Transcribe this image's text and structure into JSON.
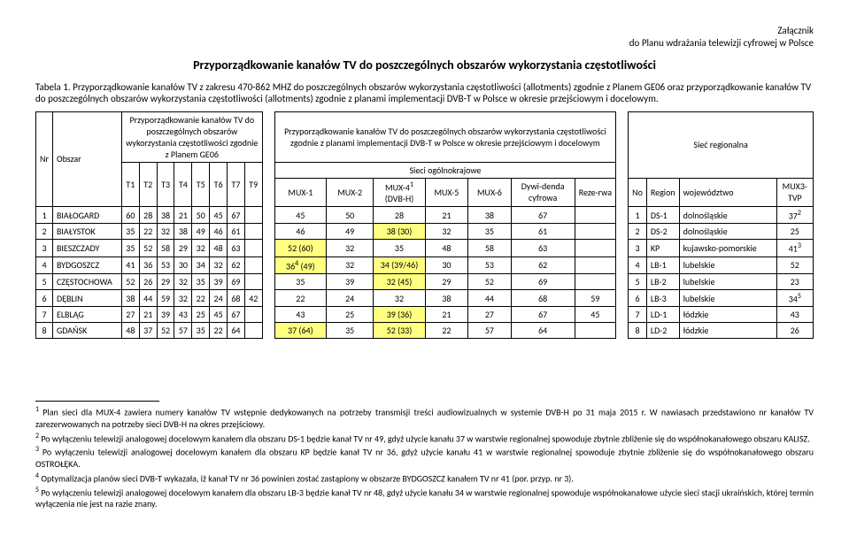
{
  "header": {
    "line1": "Załącznik",
    "line2": "do Planu wdrażania telewizji cyfrowej w Polsce"
  },
  "title": "Przyporządkowanie kanałów TV do poszczególnych obszarów wykorzystania częstotliwości",
  "tabela_label": "Tabela 1.",
  "desc": "Przyporządkowanie kanałów TV z zakresu 470-862 MHZ do poszczególnych obszarów wykorzystania częstotliwości (allotments) zgodnie z Planem GE06 oraz przyporządkowanie kanałów TV do poszczególnych obszarów wykorzystania częstotliwości (allotments) zgodnie z planami implementacji DVB-T w Polsce w okresie przejściowym i docelowym.",
  "group_left": "Przyporządkowanie kanałów TV do poszczególnych obszarów wykorzystania częstotliwości zgodnie z Planem GE06",
  "group_mid": "Przyporządkowanie kanałów TV do poszczególnych obszarów wykorzystania częstotliwości zgodnie z planami implementacji DVB-T w Polsce w okresie przejściowym i docelowym",
  "group_mid_sub1": "Sieci ogólnokrajowe",
  "group_mid_sub2": "Sieć regionalna",
  "cols": {
    "nr": "Nr",
    "obszar": "Obszar",
    "t1": "T1",
    "t2": "T2",
    "t3": "T3",
    "t4": "T4",
    "t5": "T5",
    "t6": "T6",
    "t7": "T7",
    "t9": "T9",
    "mux1": "MUX-1",
    "mux2": "MUX-2",
    "mux4": "MUX-4",
    "mux4_sup": "1",
    "mux4_sub": "(DVB-H)",
    "mux5": "MUX-5",
    "mux6": "MUX-6",
    "dyw": "Dywi-denda cyfrowa",
    "rez": "Reze-rwa",
    "no": "No",
    "region": "Region",
    "woj": "województwo",
    "mux3": "MUX3-TVP"
  },
  "rows": [
    {
      "nr": "1",
      "obszar": "BIAŁOGARD",
      "t": [
        "60",
        "28",
        "38",
        "21",
        "50",
        "45",
        "67",
        ""
      ],
      "m1": "45",
      "m2": "50",
      "m4": "28",
      "m5": "21",
      "m6": "38",
      "dyw": "67",
      "rez": "",
      "no": "1",
      "reg": "DS-1",
      "woj": "dolnośląskie",
      "m3": "37",
      "m3s": "2"
    },
    {
      "nr": "2",
      "obszar": "BIAŁYSTOK",
      "t": [
        "35",
        "22",
        "32",
        "38",
        "49",
        "46",
        "61",
        ""
      ],
      "m1": "46",
      "m2": "49",
      "m4": "38 (30)",
      "m4h": true,
      "m5": "32",
      "m6": "35",
      "dyw": "61",
      "rez": "",
      "no": "2",
      "reg": "DS-2",
      "woj": "dolnośląskie",
      "m3": "25"
    },
    {
      "nr": "3",
      "obszar": "BIESZCZADY",
      "t": [
        "35",
        "52",
        "58",
        "29",
        "32",
        "48",
        "63",
        ""
      ],
      "m1": "52 (60)",
      "m1h": true,
      "m2": "32",
      "m4": "35",
      "m5": "48",
      "m6": "58",
      "dyw": "63",
      "rez": "",
      "no": "3",
      "reg": "KP",
      "woj": "kujawsko-pomorskie",
      "m3": "41",
      "m3s": "3"
    },
    {
      "nr": "4",
      "obszar": "BYDGOSZCZ",
      "t": [
        "41",
        "36",
        "53",
        "30",
        "34",
        "32",
        "62",
        ""
      ],
      "m1": "36",
      "m1s": "4",
      "m1p": " (49)",
      "m1h": true,
      "m2": "32",
      "m4": "34 (39/46)",
      "m4h": true,
      "m5": "30",
      "m6": "53",
      "dyw": "62",
      "rez": "",
      "no": "4",
      "reg": "LB-1",
      "woj": "lubelskie",
      "m3": "52"
    },
    {
      "nr": "5",
      "obszar": "CZĘSTOCHOWA",
      "t": [
        "52",
        "26",
        "29",
        "32",
        "35",
        "39",
        "69",
        ""
      ],
      "m1": "35",
      "m2": "39",
      "m4": "32 (45)",
      "m4h": true,
      "m5": "29",
      "m6": "52",
      "dyw": "69",
      "rez": "",
      "no": "5",
      "reg": "LB-2",
      "woj": "lubelskie",
      "m3": "23"
    },
    {
      "nr": "6",
      "obszar": "DĘBLIN",
      "t": [
        "38",
        "44",
        "59",
        "32",
        "22",
        "24",
        "68",
        "42"
      ],
      "m1": "22",
      "m2": "24",
      "m4": "32",
      "m5": "38",
      "m6": "44",
      "dyw": "68",
      "rez": "59",
      "no": "6",
      "reg": "LB-3",
      "woj": "lubelskie",
      "m3": "34",
      "m3s": "5"
    },
    {
      "nr": "7",
      "obszar": "ELBLĄG",
      "t": [
        "27",
        "21",
        "39",
        "43",
        "25",
        "45",
        "67",
        ""
      ],
      "m1": "43",
      "m2": "25",
      "m4": "39 (36)",
      "m4h": true,
      "m5": "21",
      "m6": "27",
      "dyw": "67",
      "rez": "45",
      "no": "7",
      "reg": "LD-1",
      "woj": "łódzkie",
      "m3": "43"
    },
    {
      "nr": "8",
      "obszar": "GDAŃSK",
      "t": [
        "48",
        "37",
        "52",
        "57",
        "35",
        "22",
        "64",
        ""
      ],
      "m1": "37 (64)",
      "m1h": true,
      "m2": "35",
      "m4": "52 (33)",
      "m4h": true,
      "m5": "22",
      "m6": "57",
      "dyw": "64",
      "rez": "",
      "no": "8",
      "reg": "LD-2",
      "woj": "łódzkie",
      "m3": "26"
    }
  ],
  "footnotes": [
    {
      "n": "1",
      "t": "Plan sieci dla MUX-4 zawiera numery kanałów TV wstępnie dedykowanych na potrzeby transmisji treści audiowizualnych w systemie DVB-H po 31 maja 2015 r. W nawiasach przedstawiono nr kanałów TV zarezerwowanych na potrzeby sieci DVB-H na okres przejściowy."
    },
    {
      "n": "2",
      "t": "Po wyłączeniu telewizji analogowej docelowym kanałem dla obszaru DS-1 będzie kanał TV nr 49, gdyż użycie kanału 37 w warstwie regionalnej spowoduje zbytnie zbliżenie się do współnokanałowego obszaru KALISZ."
    },
    {
      "n": "3",
      "t": "Po wyłączeniu telewizji analogowej docelowym kanałem dla obszaru KP będzie kanał TV nr 36, gdyż użycie kanału 41 w warstwie regionalnej spowoduje zbytnie zbliżenie się do współnokanałowego obszaru OSTROŁĘKA."
    },
    {
      "n": "4",
      "t": "Optymalizacja planów sieci DVB-T wykazała, iż kanał TV nr 36 powinien zostać zastąpiony w obszarze BYDGOSZCZ kanałem TV nr 41 (por. przyp. nr 3)."
    },
    {
      "n": "5",
      "t": "Po wyłączeniu telewizji analogowej docelowym kanałem dla obszaru LB-3 będzie kanał TV nr 48, gdyż użycie kanału 34 w warstwie regionalnej spowoduje współnokanałowe użycie sieci stacji ukraińskich, której termin wyłączenia nie jest na razie znany."
    }
  ]
}
